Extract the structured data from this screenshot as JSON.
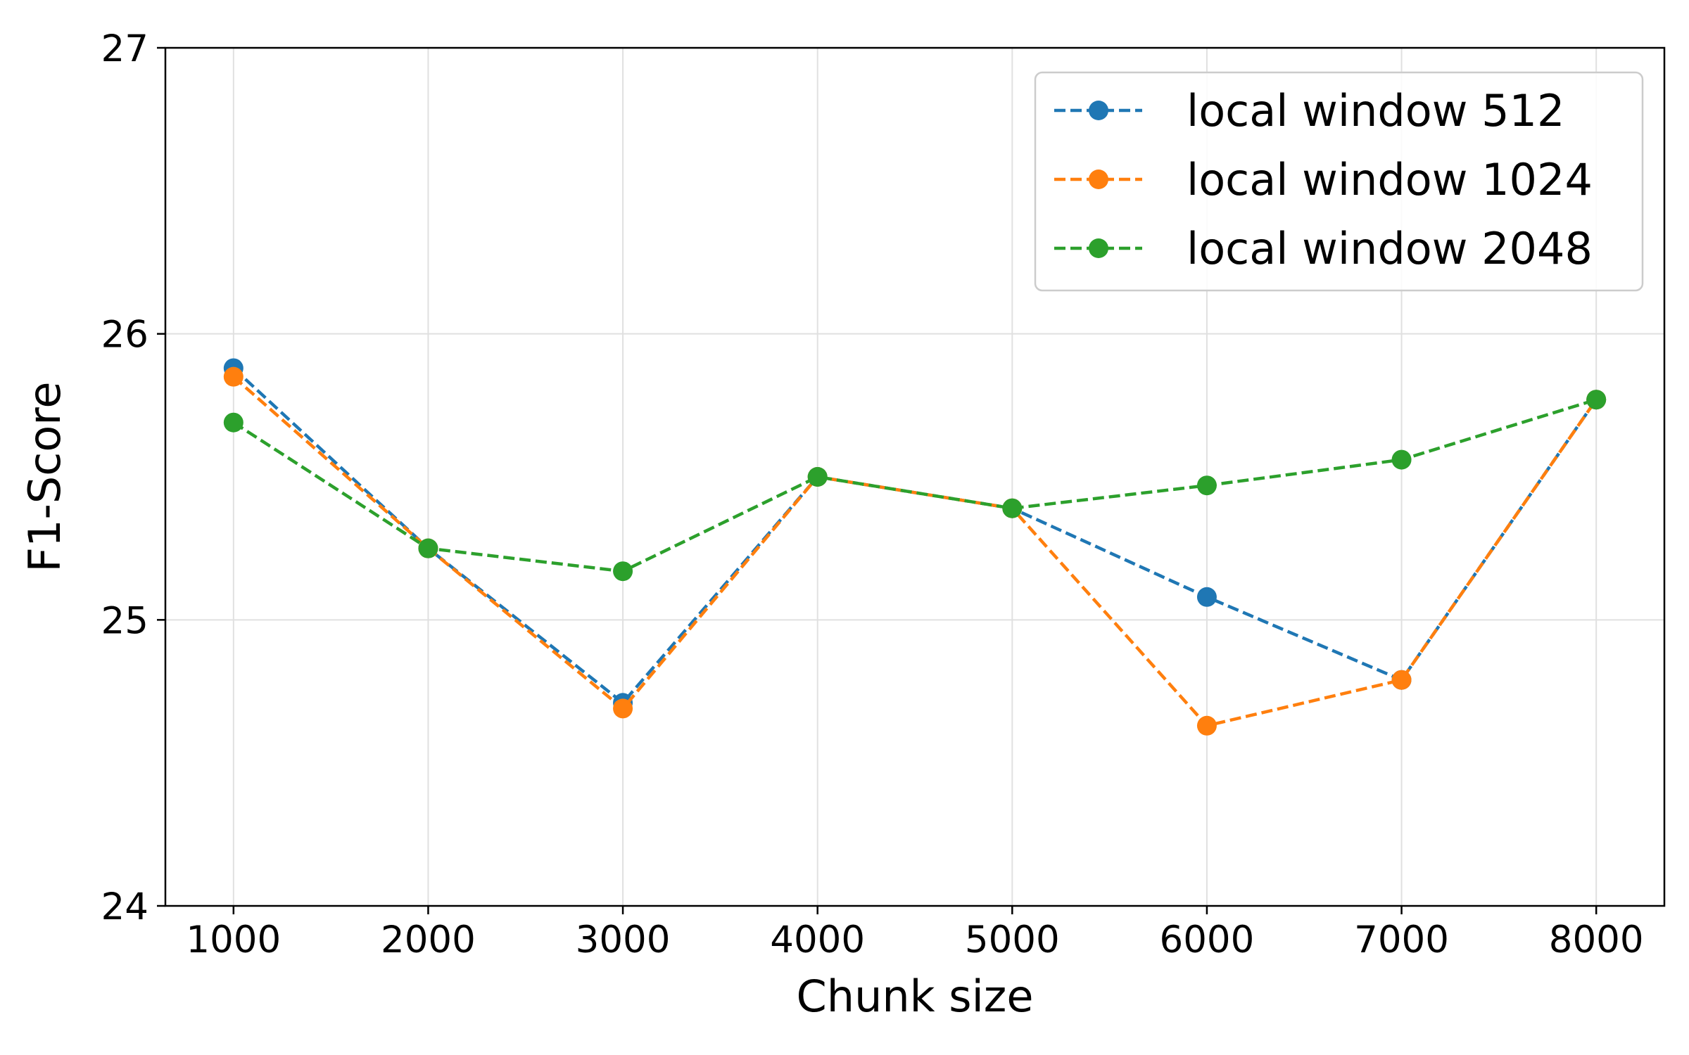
{
  "chart_data": {
    "type": "line",
    "title": "",
    "xlabel": "Chunk size",
    "ylabel": "F1-Score",
    "x": [
      1000,
      2000,
      3000,
      4000,
      5000,
      6000,
      7000,
      8000
    ],
    "x_ticks": [
      "1000",
      "2000",
      "3000",
      "4000",
      "5000",
      "6000",
      "7000",
      "8000"
    ],
    "y_ticks": [
      "24",
      "25",
      "26",
      "27"
    ],
    "xlim": [
      650,
      8350
    ],
    "ylim": [
      24,
      27
    ],
    "grid": true,
    "legend_position": "top-right",
    "line_style": "dashed",
    "marker": "circle",
    "series": [
      {
        "name": "local window 512",
        "color": "#1f77b4",
        "values": [
          25.88,
          25.25,
          24.71,
          25.5,
          25.39,
          25.08,
          24.79,
          25.77
        ]
      },
      {
        "name": "local window 1024",
        "color": "#ff7f0e",
        "values": [
          25.85,
          25.25,
          24.69,
          25.5,
          25.39,
          24.63,
          24.79,
          25.77
        ]
      },
      {
        "name": "local window 2048",
        "color": "#2ca02c",
        "values": [
          25.69,
          25.25,
          25.17,
          25.5,
          25.39,
          25.47,
          25.56,
          25.77
        ]
      }
    ]
  }
}
